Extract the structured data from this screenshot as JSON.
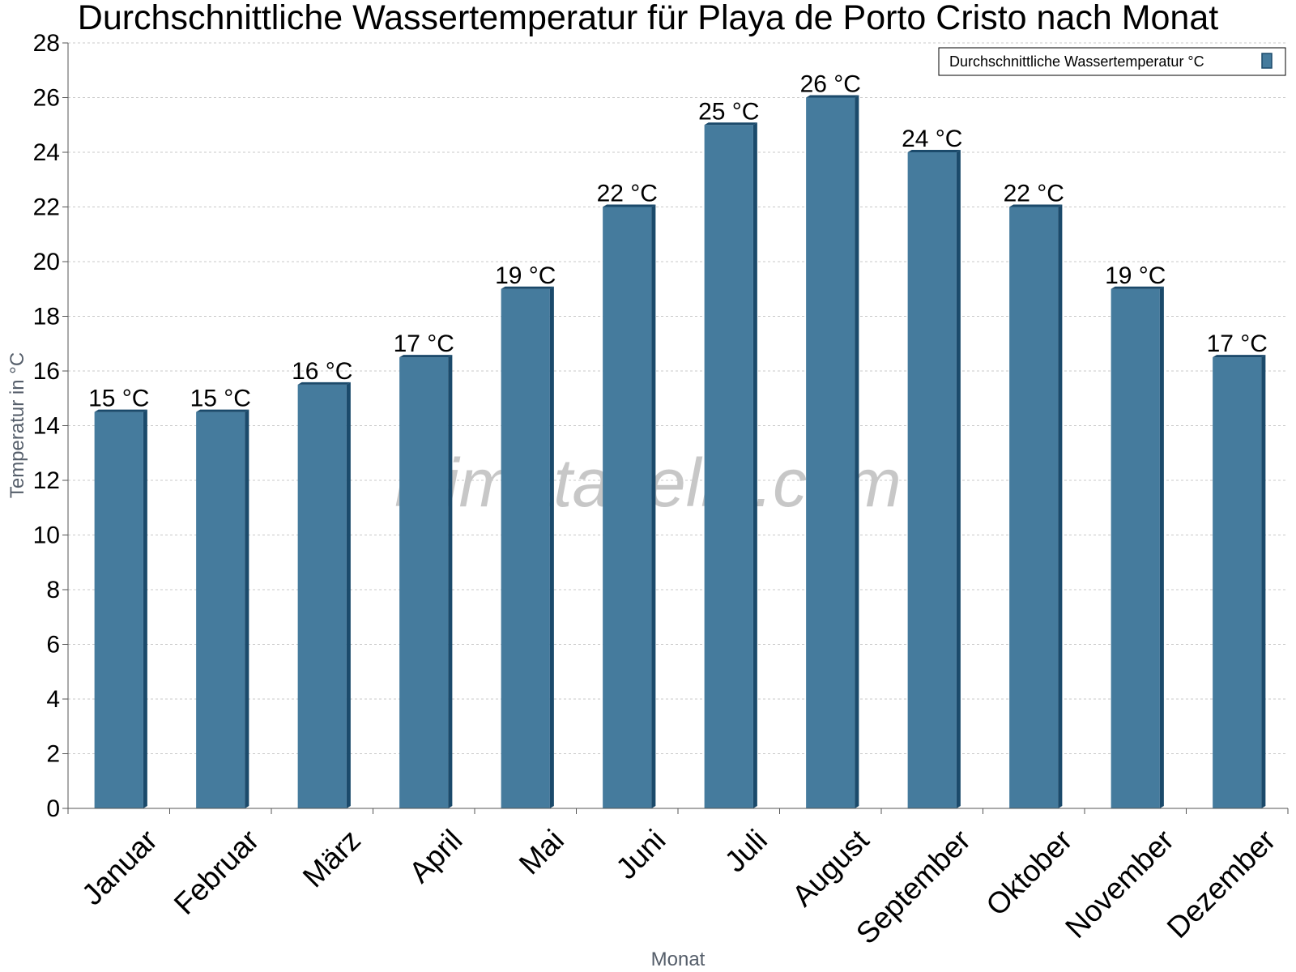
{
  "chart_data": {
    "type": "bar",
    "title": "Durchschnittliche Wassertemperatur für Playa de Porto Cristo nach Monat",
    "xlabel": "Monat",
    "ylabel": "Temperatur in °C",
    "ylim": [
      0,
      28
    ],
    "yticks": [
      0,
      2,
      4,
      6,
      8,
      10,
      12,
      14,
      16,
      18,
      20,
      22,
      24,
      26,
      28
    ],
    "grid": true,
    "legend_position": "top-right",
    "categories": [
      "Januar",
      "Februar",
      "März",
      "April",
      "Mai",
      "Juni",
      "Juli",
      "August",
      "September",
      "Oktober",
      "November",
      "Dezember"
    ],
    "series": [
      {
        "name": "Durchschnittliche Wassertemperatur °C",
        "values": [
          14.5,
          14.5,
          15.5,
          16.5,
          19,
          22,
          25,
          26,
          24,
          22,
          19,
          16.5
        ],
        "labels": [
          "15 °C",
          "15 °C",
          "16 °C",
          "17 °C",
          "19 °C",
          "22 °C",
          "25 °C",
          "26 °C",
          "24 °C",
          "22 °C",
          "19 °C",
          "17 °C"
        ],
        "color": "#457b9d"
      }
    ],
    "watermark": "klimatabelle.com"
  },
  "colors": {
    "bar": "#457b9d",
    "bar_side": "#1b4a6b",
    "bar_top": "#1b4a6b",
    "grid": "#c8c8c8",
    "axis": "#555555"
  }
}
